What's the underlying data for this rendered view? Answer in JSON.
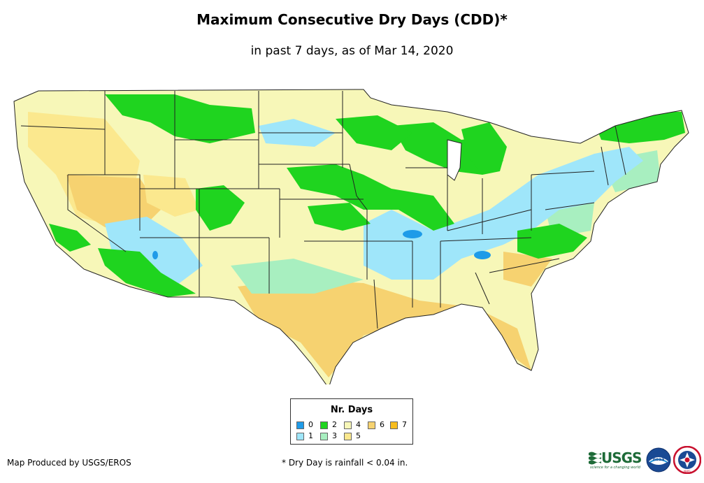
{
  "title": "Maximum Consecutive Dry Days (CDD)*",
  "subtitle": "in past 7 days, as of Mar 14, 2020",
  "legend": {
    "title": "Nr. Days",
    "items": [
      {
        "label": "0",
        "color": "#1f9be8"
      },
      {
        "label": "1",
        "color": "#9fe6fa"
      },
      {
        "label": "2",
        "color": "#1fd41f"
      },
      {
        "label": "3",
        "color": "#a8efc0"
      },
      {
        "label": "4",
        "color": "#f7f7b8"
      },
      {
        "label": "5",
        "color": "#fbe88e"
      },
      {
        "label": "6",
        "color": "#f6d270"
      },
      {
        "label": "7",
        "color": "#f7bd1e"
      }
    ]
  },
  "footer": {
    "producer": "Map Produced by USGS/EROS",
    "note": "* Dry Day is rainfall < 0.04 in."
  },
  "logos": {
    "usgs": "USGS",
    "usgs_tagline": "science for a changing world",
    "noaa": "noaa",
    "nws": "NWS"
  }
}
